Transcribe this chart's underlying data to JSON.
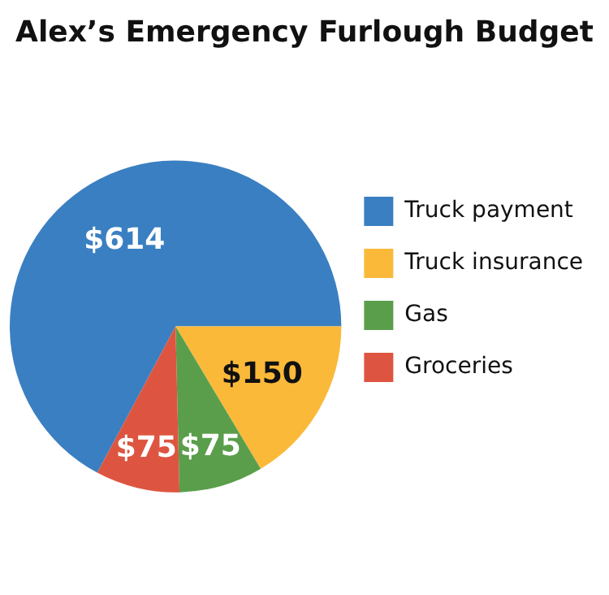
{
  "chart_data": {
    "type": "pie",
    "title": "Alex’s Emergency Furlough Budget",
    "categories": [
      "Truck payment",
      "Truck insurance",
      "Gas",
      "Groceries"
    ],
    "values": [
      614,
      150,
      75,
      75
    ],
    "colors": [
      "#3a7fc1",
      "#fbb93a",
      "#5a9e4b",
      "#dd5540"
    ],
    "value_labels": [
      "$614",
      "$150",
      "$75",
      "$75"
    ],
    "legend": "right"
  }
}
